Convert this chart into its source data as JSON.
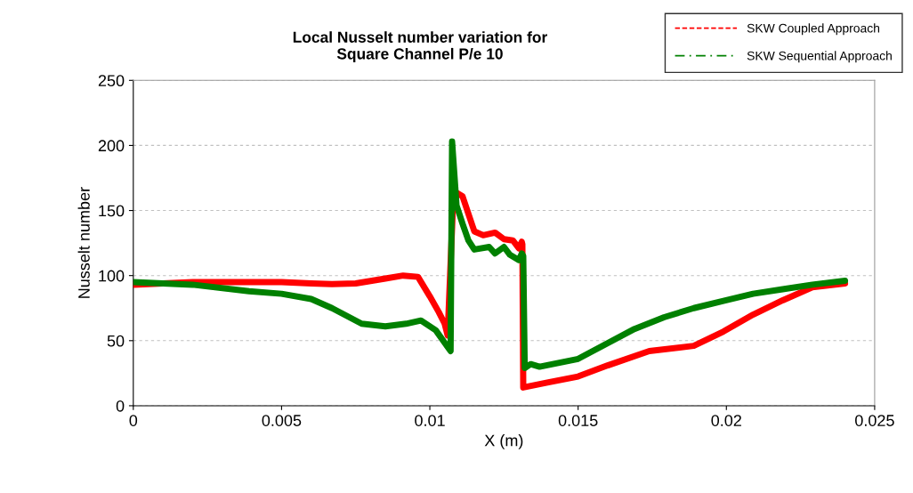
{
  "chart_data": {
    "type": "line",
    "title": "Local Nusselt number variation for\nSquare Channel P/e 10",
    "xlabel": "X (m)",
    "ylabel": "Nusselt number",
    "xlim": [
      0,
      0.025
    ],
    "xticks": [
      0,
      0.005,
      0.01,
      0.015,
      0.02,
      0.025
    ],
    "ylim": [
      0,
      250
    ],
    "yticks": [
      0,
      50,
      100,
      150,
      200,
      250
    ],
    "grid": "y",
    "legend": "top right",
    "series": [
      {
        "name": "SKW Coupled Approach",
        "color": "#ff0000",
        "x": [
          0,
          0.002,
          0.003,
          0.004,
          0.005,
          0.006,
          0.0067,
          0.0075,
          0.0085,
          0.0091,
          0.0096,
          0.01,
          0.0103,
          0.0105,
          0.0106,
          0.0108,
          0.0111,
          0.0115,
          0.0118,
          0.012,
          0.0122,
          0.0125,
          0.0128,
          0.013,
          0.0131,
          0.01312,
          0.01315,
          0.014,
          0.015,
          0.016,
          0.0174,
          0.0189,
          0.0199,
          0.0209,
          0.0219,
          0.0229,
          0.024
        ],
        "values": [
          93,
          95,
          95,
          95,
          95,
          94,
          93.5,
          94,
          97.7,
          100,
          99,
          84,
          72,
          63,
          54,
          165,
          161,
          134,
          131,
          132,
          133,
          128,
          127,
          121,
          126,
          124,
          14,
          18,
          22.5,
          31,
          42,
          46,
          57,
          70,
          81,
          91,
          94
        ]
      },
      {
        "name": "SKW Sequential Approach",
        "color": "#008000",
        "x": [
          0,
          0.001,
          0.002,
          0.0039,
          0.005,
          0.006,
          0.0067,
          0.0077,
          0.0085,
          0.0092,
          0.0097,
          0.0102,
          0.0107,
          0.01075,
          0.0109,
          0.0111,
          0.0113,
          0.0115,
          0.012,
          0.0122,
          0.0125,
          0.0127,
          0.013,
          0.0131,
          0.01315,
          0.0132,
          0.0134,
          0.0137,
          0.015,
          0.0169,
          0.0179,
          0.0189,
          0.0199,
          0.0209,
          0.0219,
          0.0229,
          0.024
        ],
        "values": [
          95,
          94,
          93,
          88,
          86,
          82,
          75,
          63,
          61,
          63,
          65.5,
          58,
          42,
          203,
          154,
          140,
          127,
          120,
          122,
          117,
          122,
          116,
          112,
          117,
          115,
          29,
          32,
          30,
          36,
          59,
          68,
          75,
          80.5,
          86,
          89.5,
          93,
          96
        ]
      }
    ]
  }
}
